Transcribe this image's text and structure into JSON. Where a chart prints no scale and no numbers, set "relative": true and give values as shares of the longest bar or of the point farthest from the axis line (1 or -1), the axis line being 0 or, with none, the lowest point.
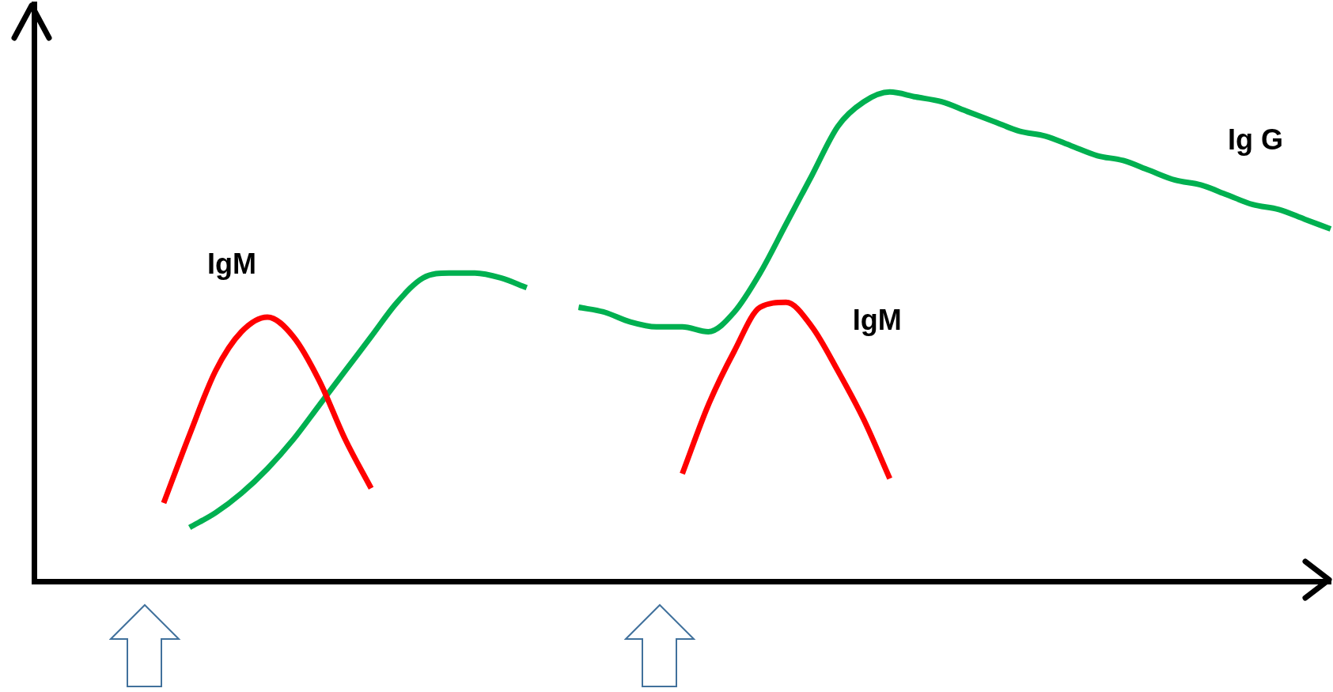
{
  "chart_data": {
    "type": "line",
    "relative": true,
    "grid": false,
    "legend": false,
    "marker": "none",
    "line_style": "solid",
    "categories": [
      null,
      null,
      null,
      null,
      null,
      null,
      null,
      null,
      null,
      null,
      null,
      null,
      null,
      null,
      null,
      null,
      null,
      null,
      null,
      null,
      null,
      null,
      null,
      null,
      null,
      null,
      null,
      null,
      null,
      null,
      null,
      null,
      null,
      null,
      null,
      null,
      null,
      null,
      null,
      null,
      null,
      null,
      null,
      null,
      null,
      null,
      null,
      null,
      null,
      null,
      null
    ],
    "series": [
      {
        "name": "IgM",
        "color": "#ff0000",
        "values": [
          null,
          null,
          null,
          null,
          null,
          0.16,
          0.3,
          0.43,
          0.51,
          0.54,
          0.5,
          0.41,
          0.29,
          0.19,
          null,
          null,
          null,
          null,
          null,
          null,
          null,
          null,
          null,
          null,
          null,
          null,
          null,
          null,
          null,
          null,
          null,
          null,
          null,
          null,
          null,
          null,
          null,
          null,
          null,
          null,
          null,
          null,
          null,
          null,
          null,
          null,
          null,
          null,
          null,
          null,
          null
        ]
      },
      {
        "name": "IgM",
        "color": "#ff0000",
        "values": [
          null,
          null,
          null,
          null,
          null,
          null,
          null,
          null,
          null,
          null,
          null,
          null,
          null,
          null,
          null,
          null,
          null,
          null,
          null,
          null,
          null,
          null,
          null,
          null,
          null,
          0.22,
          0.36,
          0.47,
          0.56,
          0.57,
          0.52,
          0.43,
          0.33,
          0.21,
          null,
          null,
          null,
          null,
          null,
          null,
          null,
          null,
          null,
          null,
          null,
          null,
          null,
          null,
          null,
          null,
          null
        ]
      },
      {
        "name": "Ig G",
        "color": "#00b050",
        "values": [
          null,
          null,
          null,
          null,
          null,
          null,
          0.11,
          0.14,
          0.18,
          0.23,
          0.29,
          0.36,
          0.43,
          0.5,
          0.57,
          0.62,
          0.63,
          0.63,
          0.62,
          0.6,
          null,
          0.56,
          0.55,
          0.53,
          0.52,
          0.52,
          0.51,
          0.55,
          0.63,
          0.73,
          0.83,
          0.93,
          0.98,
          1,
          0.99,
          0.98,
          0.96,
          0.94,
          0.92,
          0.91,
          0.89,
          0.87,
          0.86,
          0.84,
          0.82,
          0.81,
          0.79,
          0.77,
          0.76,
          0.74,
          0.72
        ]
      }
    ]
  }
}
